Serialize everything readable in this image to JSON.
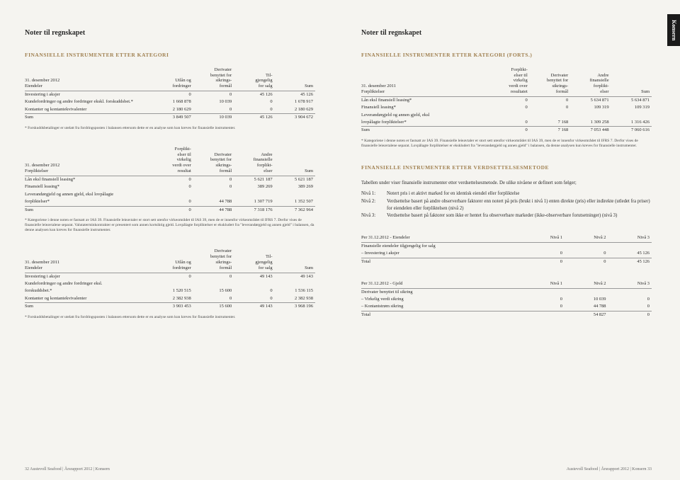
{
  "tab": "Konsern",
  "left": {
    "header": "Noter til regnskapet",
    "sectionTitle": "FINANSIELLE INSTRUMENTER ETTER KATEGORI",
    "t1": {
      "h0": "31. desember 2012\nEiendeler",
      "h1": "Utlån og\nfordringer",
      "h2": "Derivater\nbenyttet for\nsikrings-\nformål",
      "h3": "Til-\ngjengelig\nfor salg",
      "h4": "Sum",
      "r": [
        [
          "Investering i aksjer",
          "0",
          "0",
          "45 126",
          "45 126"
        ],
        [
          "Kundefordringer og andre fordringer ekskl. forskuddsbet.*",
          "1 668 878",
          "10 039",
          "0",
          "1 678 917"
        ],
        [
          "Kontanter og kontantekvivalenter",
          "2 180 629",
          "0",
          "0",
          "2 180 629"
        ]
      ],
      "sum": [
        "Sum",
        "3 849 507",
        "10 039",
        "45 126",
        "3 904 672"
      ],
      "note": "* Forskuddsbetalinger er utelatt fra fordringsposten i balansen ettersom dette er en analyse som kun kreves for finansielle instrumenter."
    },
    "t2": {
      "h0": "31. desember 2012\nForpliktelser",
      "h1": "Forplikt-\nelser til\nvirkelig\nverdi over\nresultat",
      "h2": "Derivater\nbenyttet for\nsikrings-\nformål",
      "h3": "Andre\nfinansielle\nforplikt-\nelser",
      "h4": "Sum",
      "r": [
        [
          "Lån eksl finansiell leasing*",
          "0",
          "0",
          "5 621 187",
          "5 621 187"
        ],
        [
          "Finansiell leasing*",
          "0",
          "0",
          "389 269",
          "389 269"
        ],
        [
          "Leverandørgjeld og annen gjeld, eksl lovpålagte",
          "",
          "",
          "",
          ""
        ],
        [
          "forpliktelser*",
          "0",
          "44 788",
          "1 307 719",
          "1 352 507"
        ]
      ],
      "sum": [
        "Sum",
        "0",
        "44 788",
        "7 318 176",
        "7 362 964"
      ],
      "note": "* Kategoriene i denne noten er fastsatt av IAS 39. Finansielle leieavtaler er stort sett utenfor virkeområdet til IAS 39, men de er innenfor virkeområdet til IFRS 7. Derfor vises de finansielle leieavtalene separat. Valutaterminkontrakter er presentert som annen kortsiktig gjeld. Lovpålagte forpliktelser er ekskludert fra \"leverandørgjeld og annen gjeld\" i balansen, da denne analysen kun kreves for finansielle instrumenter."
    },
    "t3": {
      "h0": "31. desember 2011\nEiendeler",
      "h1": "Utlån og\nfordringer",
      "h2": "Derivater\nbenyttet for\nsikrings-\nformål",
      "h3": "Til-\ngjengelig\nfor salg",
      "h4": "Sum",
      "r": [
        [
          "Investering i aksjer",
          "0",
          "0",
          "49 143",
          "49 143"
        ],
        [
          "Kundefordringer og andre fordringer eksl.",
          "",
          "",
          "",
          ""
        ],
        [
          "forskuddsbet.*",
          "1 520 515",
          "15 600",
          "0",
          "1 536 115"
        ],
        [
          "Kontanter og kontantekvivalenter",
          "2 382 938",
          "0",
          "0",
          "2 382 938"
        ]
      ],
      "sum": [
        "Sum",
        "3 903 453",
        "15 600",
        "49 143",
        "3 968 196"
      ],
      "note": "* Forskuddsbetalinger er utelatt fra fordringsposten i balansen ettersom dette er en analyse som kun kreves for finansielle instrumenter."
    },
    "footer": "32   Austevoll Seafood | Årsrapport 2012 | Konsern"
  },
  "right": {
    "header": "Noter til regnskapet",
    "sectionTitle": "FINANSIELLE INSTRUMENTER ETTER KATEGORI (FORTS.)",
    "t4": {
      "h0": "31. desember 2011\nForpliktelser",
      "h1": "Forplikt-\nelser til\nvirkelig\nverdi over\nresultatet",
      "h2": "Derivater\nbenyttet for\nsikrings-\nformål",
      "h3": "Andre\nfinansielle\nforplikt-\nelser",
      "h4": "Sum",
      "r": [
        [
          "Lån eksl finansiell leasing*",
          "0",
          "0",
          "5 634 871",
          "5 634 871"
        ],
        [
          "Finansiell leasing*",
          "0",
          "0",
          "109 319",
          "109 319"
        ],
        [
          "Leverandørgjeld og annen gjeld, eksl",
          "",
          "",
          "",
          ""
        ],
        [
          "lovpålagte forpliktelser*",
          "0",
          "7 168",
          "1 309 258",
          "1 316 426"
        ]
      ],
      "sum": [
        "Sum",
        "0",
        "7 168",
        "7 053 448",
        "7 060 616"
      ],
      "note": "* Kategoriene i denne noten er fastsatt av IAS 39. Finansielle leieavtaler er stort sett utenfor virkeområdet til IAS 39, men de er innenfor virkeområdet til IFRS 7. Derfor vises de finansielle leieavtalene separat. Lovpålagte forpliktelser er ekskludert fra \"leverandørgjeld og annen gjeld\" i balansen, da denne analysen kun kreves for finansielle instrumenter."
    },
    "section2Title": "FINANSIELLE INSTRUMENTER ETTER VERDSETTELSESMETODE",
    "intro": "Tabellen under viser finansielle instrumenter etter verdsettelsesmetode. De ulike nivåene er definert som følger;",
    "nivaa": [
      [
        "Nivå 1:",
        "Notert pris i et aktivt marked for en identisk eiendel eller forpliktelse"
      ],
      [
        "Nivå 2:",
        "Verdsettelse basert på andre observerbare faktorer enn notert på pris (brukt i nivå 1) enten direkte (pris) eller indirekte (utledet fra priser) for eiendelen eller forpliktelsen (nivå 2)"
      ],
      [
        "Nivå 3:",
        "Verdsettelse basert på faktorer som ikke er hentet fra observerbare markeder (ikke-observerbare forutsetninger) (nivå 3)"
      ]
    ],
    "t5": {
      "title": "Per 31.12.2012 - Eiendeler",
      "h1": "Nivå 1",
      "h2": "Nivå 2",
      "h3": "Nivå 3",
      "r": [
        [
          "Finansielle eiendeler tilgjengelig for salg",
          "",
          "",
          ""
        ],
        [
          "– Investering i aksjer",
          "0",
          "0",
          "45 126"
        ]
      ],
      "sum": [
        "Total",
        "0",
        "0",
        "45 126"
      ]
    },
    "t6": {
      "title": "Per 31.12.2012 - Gjeld",
      "h1": "Nivå 1",
      "h2": "Nivå 2",
      "h3": "Nivå 3",
      "r": [
        [
          "Derivater benyttet til sikring",
          "",
          "",
          ""
        ],
        [
          "– Virkelig verdi sikring",
          "0",
          "10 039",
          "0"
        ],
        [
          "– Kontantstrøm sikring",
          "0",
          "44 788",
          "0"
        ]
      ],
      "sum": [
        "Total",
        "",
        "54 827",
        "0"
      ]
    },
    "footer": "Austevoll Seafood | Årsrapport 2012 | Konsern   33"
  }
}
